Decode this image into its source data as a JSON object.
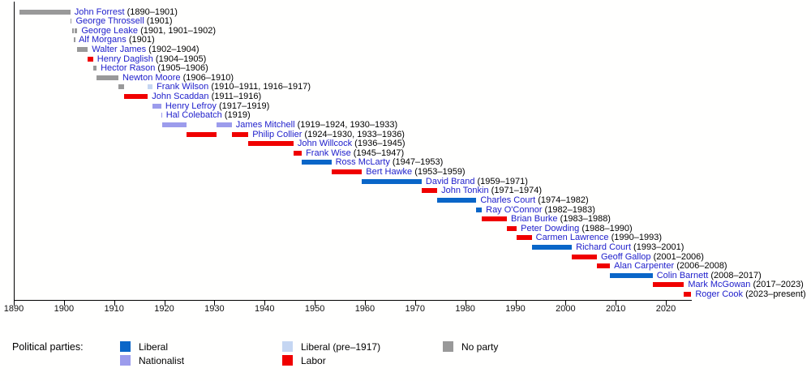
{
  "chart_data": {
    "type": "bar",
    "subtype": "gantt-timeline",
    "title": "",
    "xlabel": "",
    "ylabel": "",
    "xlim": [
      1890,
      2025
    ],
    "x_ticks": [
      1890,
      1900,
      1910,
      1920,
      1930,
      1940,
      1950,
      1960,
      1970,
      1980,
      1990,
      2000,
      2010,
      2020
    ],
    "grid": false,
    "legend_position": "bottom",
    "parties": {
      "liberal": {
        "label": "Liberal",
        "color": "#0a66c8"
      },
      "nationalist": {
        "label": "Nationalist",
        "color": "#9c9cec"
      },
      "liberal_pre1917": {
        "label": "Liberal (pre–1917)",
        "color": "#c5d6f2"
      },
      "labor": {
        "label": "Labor",
        "color": "#f00000"
      },
      "no_party": {
        "label": "No party",
        "color": "#999999"
      }
    },
    "premiers": [
      {
        "name": "John Forrest",
        "dates": "(1890–1901)",
        "terms": [
          {
            "start": 1891.0,
            "end": 1901.12,
            "party": "no_party"
          }
        ]
      },
      {
        "name": "George Throssell",
        "dates": "(1901)",
        "terms": [
          {
            "start": 1901.12,
            "end": 1901.4,
            "party": "no_party"
          }
        ]
      },
      {
        "name": "George Leake",
        "dates": "(1901, 1901–1902)",
        "terms": [
          {
            "start": 1901.4,
            "end": 1901.88,
            "party": "no_party"
          },
          {
            "start": 1901.98,
            "end": 1902.5,
            "party": "no_party"
          }
        ]
      },
      {
        "name": "Alf Morgans",
        "dates": "(1901)",
        "terms": [
          {
            "start": 1901.88,
            "end": 1901.98,
            "party": "no_party"
          }
        ]
      },
      {
        "name": "Walter James",
        "dates": "(1902–1904)",
        "terms": [
          {
            "start": 1902.5,
            "end": 1904.6,
            "party": "no_party"
          }
        ]
      },
      {
        "name": "Henry Daglish",
        "dates": "(1904–1905)",
        "terms": [
          {
            "start": 1904.6,
            "end": 1905.65,
            "party": "labor"
          }
        ]
      },
      {
        "name": "Hector Rason",
        "dates": "(1905–1906)",
        "terms": [
          {
            "start": 1905.65,
            "end": 1906.35,
            "party": "no_party"
          }
        ]
      },
      {
        "name": "Newton Moore",
        "dates": "(1906–1910)",
        "terms": [
          {
            "start": 1906.35,
            "end": 1910.7,
            "party": "no_party"
          }
        ]
      },
      {
        "name": "Frank Wilson",
        "dates": "(1910–1911, 1916–1917)",
        "terms": [
          {
            "start": 1910.7,
            "end": 1911.75,
            "party": "no_party"
          },
          {
            "start": 1916.55,
            "end": 1917.5,
            "party": "liberal_pre1917"
          }
        ]
      },
      {
        "name": "John Scaddan",
        "dates": "(1911–1916)",
        "terms": [
          {
            "start": 1911.75,
            "end": 1916.55,
            "party": "labor"
          }
        ]
      },
      {
        "name": "Henry Lefroy",
        "dates": "(1917–1919)",
        "terms": [
          {
            "start": 1917.5,
            "end": 1919.25,
            "party": "nationalist"
          }
        ]
      },
      {
        "name": "Hal Colebatch",
        "dates": "(1919)",
        "terms": [
          {
            "start": 1919.25,
            "end": 1919.38,
            "party": "nationalist"
          }
        ]
      },
      {
        "name": "James Mitchell",
        "dates": "(1919–1924, 1930–1933)",
        "terms": [
          {
            "start": 1919.38,
            "end": 1924.3,
            "party": "nationalist"
          },
          {
            "start": 1930.3,
            "end": 1933.3,
            "party": "nationalist"
          }
        ]
      },
      {
        "name": "Philip Collier",
        "dates": "(1924–1930, 1933–1936)",
        "terms": [
          {
            "start": 1924.3,
            "end": 1930.3,
            "party": "labor"
          },
          {
            "start": 1933.3,
            "end": 1936.6,
            "party": "labor"
          }
        ]
      },
      {
        "name": "John Willcock",
        "dates": "(1936–1945)",
        "terms": [
          {
            "start": 1936.6,
            "end": 1945.6,
            "party": "labor"
          }
        ]
      },
      {
        "name": "Frank Wise",
        "dates": "(1945–1947)",
        "terms": [
          {
            "start": 1945.6,
            "end": 1947.25,
            "party": "labor"
          }
        ]
      },
      {
        "name": "Ross McLarty",
        "dates": "(1947–1953)",
        "terms": [
          {
            "start": 1947.25,
            "end": 1953.15,
            "party": "liberal"
          }
        ]
      },
      {
        "name": "Bert Hawke",
        "dates": "(1953–1959)",
        "terms": [
          {
            "start": 1953.15,
            "end": 1959.25,
            "party": "labor"
          }
        ]
      },
      {
        "name": "David Brand",
        "dates": "(1959–1971)",
        "terms": [
          {
            "start": 1959.25,
            "end": 1971.15,
            "party": "liberal"
          }
        ]
      },
      {
        "name": "John Tonkin",
        "dates": "(1971–1974)",
        "terms": [
          {
            "start": 1971.15,
            "end": 1974.25,
            "party": "labor"
          }
        ]
      },
      {
        "name": "Charles Court",
        "dates": "(1974–1982)",
        "terms": [
          {
            "start": 1974.25,
            "end": 1982.05,
            "party": "liberal"
          }
        ]
      },
      {
        "name": "Ray O'Connor",
        "dates": "(1982–1983)",
        "terms": [
          {
            "start": 1982.05,
            "end": 1983.15,
            "party": "liberal"
          }
        ]
      },
      {
        "name": "Brian Burke",
        "dates": "(1983–1988)",
        "terms": [
          {
            "start": 1983.15,
            "end": 1988.15,
            "party": "labor"
          }
        ]
      },
      {
        "name": "Peter Dowding",
        "dates": "(1988–1990)",
        "terms": [
          {
            "start": 1988.15,
            "end": 1990.1,
            "party": "labor"
          }
        ]
      },
      {
        "name": "Carmen Lawrence",
        "dates": "(1990–1993)",
        "terms": [
          {
            "start": 1990.1,
            "end": 1993.1,
            "party": "labor"
          }
        ]
      },
      {
        "name": "Richard Court",
        "dates": "(1993–2001)",
        "terms": [
          {
            "start": 1993.1,
            "end": 2001.1,
            "party": "liberal"
          }
        ]
      },
      {
        "name": "Geoff Gallop",
        "dates": "(2001–2006)",
        "terms": [
          {
            "start": 2001.1,
            "end": 2006.08,
            "party": "labor"
          }
        ]
      },
      {
        "name": "Alan Carpenter",
        "dates": "(2006–2008)",
        "terms": [
          {
            "start": 2006.08,
            "end": 2008.7,
            "party": "labor"
          }
        ]
      },
      {
        "name": "Colin Barnett",
        "dates": "(2008–2017)",
        "terms": [
          {
            "start": 2008.7,
            "end": 2017.2,
            "party": "liberal"
          }
        ]
      },
      {
        "name": "Mark McGowan",
        "dates": "(2017–2023)",
        "terms": [
          {
            "start": 2017.2,
            "end": 2023.45,
            "party": "labor"
          }
        ]
      },
      {
        "name": "Roger Cook",
        "dates": "(2023–present)",
        "terms": [
          {
            "start": 2023.45,
            "end": 2024.9,
            "party": "labor"
          }
        ]
      }
    ]
  },
  "legend": {
    "title": "Political parties:",
    "entries": [
      {
        "party": "liberal",
        "col": 0,
        "row": 0
      },
      {
        "party": "nationalist",
        "col": 0,
        "row": 1
      },
      {
        "party": "liberal_pre1917",
        "col": 1,
        "row": 0
      },
      {
        "party": "labor",
        "col": 1,
        "row": 1
      },
      {
        "party": "no_party",
        "col": 2,
        "row": 0
      }
    ]
  },
  "colors": {
    "name_link": "#2020cc",
    "axis": "#000000",
    "background": "#fffffe"
  }
}
